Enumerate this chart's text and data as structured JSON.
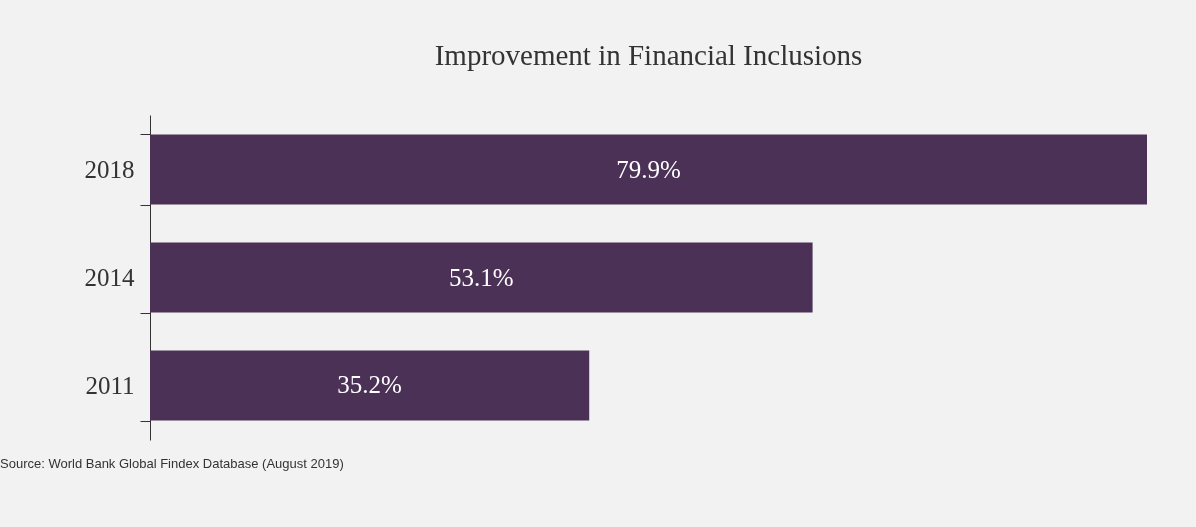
{
  "chart_data": {
    "type": "bar",
    "orientation": "horizontal",
    "title": "Improvement in Financial Inclusions",
    "categories": [
      "2018",
      "2014",
      "2011"
    ],
    "values": [
      79.9,
      53.1,
      35.2
    ],
    "value_labels": [
      "79.9%",
      "53.1%",
      "35.2%"
    ],
    "color": "#4b3156",
    "annotations": [
      "Source: World Bank Global Findex Database (August 2019)"
    ]
  }
}
